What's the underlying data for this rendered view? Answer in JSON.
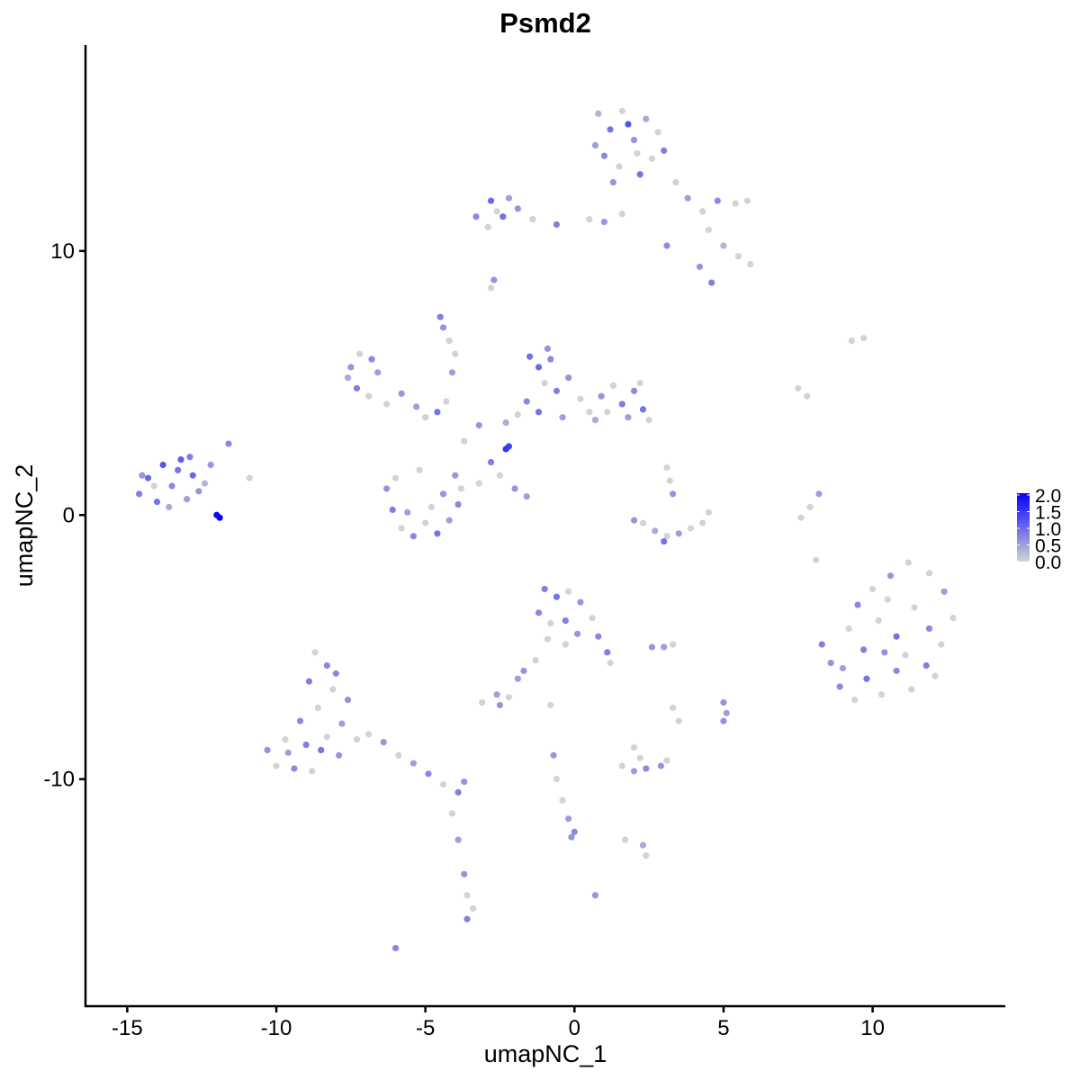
{
  "chart_data": {
    "type": "scatter",
    "title": "Psmd2",
    "xlabel": "umapNC_1",
    "ylabel": "umapNC_2",
    "xlim": [
      -16.4,
      14.45
    ],
    "ylim": [
      -18.6,
      17.8
    ],
    "xticks": [
      -15,
      -10,
      -5,
      0,
      5,
      10
    ],
    "yticks": [
      -10,
      0,
      10
    ],
    "xtick_labels": [
      "-15",
      "-10",
      "-5",
      "0",
      "5",
      "10"
    ],
    "ytick_labels": [
      "-10",
      "0",
      "10"
    ],
    "grid": false,
    "legend": {
      "placement": "right",
      "type": "colorbar",
      "range": [
        0,
        2
      ],
      "ticks": [
        "0.0",
        "0.5",
        "1.0",
        "1.5",
        "2.0"
      ],
      "low_color": "#D3D3D3",
      "high_color": "#0000FF"
    },
    "point_format": [
      "x",
      "y",
      "expression"
    ],
    "points": [
      [
        -14.6,
        0.8,
        0.8
      ],
      [
        -14.3,
        1.4,
        1.0
      ],
      [
        -14.0,
        0.5,
        0.9
      ],
      [
        -13.8,
        1.9,
        1.2
      ],
      [
        -13.5,
        1.1,
        0.7
      ],
      [
        -13.2,
        2.1,
        1.1
      ],
      [
        -13.0,
        0.6,
        0.5
      ],
      [
        -12.8,
        1.5,
        1.0
      ],
      [
        -12.6,
        0.9,
        0.6
      ],
      [
        -14.1,
        1.1,
        0
      ],
      [
        -13.6,
        0.3,
        0.4
      ],
      [
        -13.3,
        1.7,
        0.9
      ],
      [
        -12.9,
        2.2,
        0.8
      ],
      [
        -12.4,
        1.2,
        0.3
      ],
      [
        -14.5,
        1.5,
        0.6
      ],
      [
        -11.9,
        -0.1,
        2.0
      ],
      [
        -12.0,
        0.0,
        1.9
      ],
      [
        -11.6,
        2.7,
        0.7
      ],
      [
        -12.2,
        1.9,
        0.6
      ],
      [
        -10.9,
        1.4,
        0
      ],
      [
        0.8,
        15.2,
        0.3
      ],
      [
        1.2,
        14.6,
        0.9
      ],
      [
        1.6,
        15.3,
        0
      ],
      [
        2.0,
        14.2,
        0.6
      ],
      [
        2.4,
        15.0,
        0.4
      ],
      [
        2.8,
        14.5,
        0
      ],
      [
        3.0,
        13.8,
        0.8
      ],
      [
        1.0,
        13.6,
        0.7
      ],
      [
        1.5,
        13.2,
        0
      ],
      [
        2.2,
        12.9,
        0.9
      ],
      [
        2.6,
        13.5,
        0
      ],
      [
        0.7,
        14.0,
        0.5
      ],
      [
        1.8,
        14.8,
        1.2
      ],
      [
        2.1,
        13.7,
        0
      ],
      [
        1.3,
        12.6,
        0.6
      ],
      [
        3.4,
        12.6,
        0
      ],
      [
        3.8,
        12.0,
        0.5
      ],
      [
        4.3,
        11.5,
        0
      ],
      [
        4.8,
        11.9,
        0.7
      ],
      [
        5.4,
        11.8,
        0
      ],
      [
        5.8,
        11.9,
        0
      ],
      [
        4.5,
        10.8,
        0
      ],
      [
        5.0,
        10.2,
        0.3
      ],
      [
        5.5,
        9.8,
        0
      ],
      [
        5.9,
        9.5,
        0
      ],
      [
        4.2,
        9.4,
        0.6
      ],
      [
        4.6,
        8.8,
        0.8
      ],
      [
        3.1,
        10.2,
        0.7
      ],
      [
        1.6,
        11.4,
        0
      ],
      [
        1.0,
        11.1,
        0.6
      ],
      [
        0.5,
        11.2,
        0
      ],
      [
        -0.6,
        11.0,
        0.8
      ],
      [
        -1.4,
        11.2,
        0
      ],
      [
        -1.9,
        11.6,
        0.6
      ],
      [
        -2.4,
        11.3,
        0.9
      ],
      [
        -2.8,
        11.9,
        1.0
      ],
      [
        -2.2,
        12.0,
        0.5
      ],
      [
        -2.9,
        10.9,
        0
      ],
      [
        -3.3,
        11.3,
        0.7
      ],
      [
        -2.6,
        11.5,
        0
      ],
      [
        -2.7,
        8.9,
        0.6
      ],
      [
        -2.8,
        8.6,
        0
      ],
      [
        -7.5,
        5.6,
        0.6
      ],
      [
        -7.2,
        6.1,
        0
      ],
      [
        -6.8,
        5.9,
        0.7
      ],
      [
        -7.6,
        5.2,
        0.4
      ],
      [
        -7.3,
        4.8,
        0.8
      ],
      [
        -6.9,
        4.5,
        0
      ],
      [
        -6.6,
        5.4,
        0.5
      ],
      [
        -6.3,
        4.2,
        0
      ],
      [
        -5.8,
        4.6,
        0.6
      ],
      [
        -5.3,
        4.1,
        0.5
      ],
      [
        -5.0,
        3.7,
        0
      ],
      [
        -4.6,
        3.9,
        0.9
      ],
      [
        -4.3,
        4.3,
        0
      ],
      [
        -4.5,
        7.5,
        0.8
      ],
      [
        -4.4,
        7.1,
        0.6
      ],
      [
        -4.2,
        6.6,
        0
      ],
      [
        -4.0,
        6.1,
        0
      ],
      [
        -4.1,
        5.4,
        0.5
      ],
      [
        -6.3,
        1.0,
        0.6
      ],
      [
        -6.1,
        0.2,
        0.8
      ],
      [
        -5.8,
        -0.5,
        0
      ],
      [
        -5.4,
        -0.8,
        0.7
      ],
      [
        -5.0,
        -0.3,
        0
      ],
      [
        -4.6,
        -0.7,
        0.9
      ],
      [
        -4.2,
        -0.2,
        0.5
      ],
      [
        -3.9,
        0.4,
        0.7
      ],
      [
        -3.8,
        1.0,
        0
      ],
      [
        -4.0,
        1.5,
        0.6
      ],
      [
        -5.6,
        0.1,
        0.5
      ],
      [
        -4.8,
        0.3,
        0
      ],
      [
        -6.0,
        1.4,
        0
      ],
      [
        -5.2,
        1.7,
        0
      ],
      [
        -4.4,
        0.8,
        0.6
      ],
      [
        -3.7,
        2.8,
        0
      ],
      [
        -3.2,
        3.4,
        0.6
      ],
      [
        -2.8,
        2.0,
        0.8
      ],
      [
        -2.5,
        1.5,
        0
      ],
      [
        -2.0,
        1.0,
        0.6
      ],
      [
        -1.6,
        0.7,
        0.5
      ],
      [
        -3.2,
        1.2,
        0
      ],
      [
        -2.3,
        2.5,
        1.5
      ],
      [
        -2.2,
        2.6,
        1.4
      ],
      [
        -1.5,
        6.0,
        0.9
      ],
      [
        -1.2,
        5.6,
        1.0
      ],
      [
        -0.8,
        5.9,
        0.7
      ],
      [
        -1.0,
        5.0,
        0
      ],
      [
        -0.6,
        4.7,
        0.8
      ],
      [
        -0.2,
        5.2,
        0.6
      ],
      [
        0.2,
        4.4,
        0
      ],
      [
        -1.6,
        4.3,
        0.7
      ],
      [
        -1.9,
        3.8,
        0
      ],
      [
        -1.2,
        3.9,
        0.9
      ],
      [
        -0.4,
        3.7,
        0.5
      ],
      [
        0.5,
        3.9,
        0
      ],
      [
        -0.9,
        6.3,
        0.6
      ],
      [
        -2.3,
        3.5,
        0.4
      ],
      [
        0.9,
        4.5,
        0.6
      ],
      [
        1.3,
        4.9,
        0
      ],
      [
        1.6,
        4.2,
        0.8
      ],
      [
        2.0,
        4.7,
        0.7
      ],
      [
        2.3,
        4.0,
        0.9
      ],
      [
        2.5,
        3.6,
        0
      ],
      [
        1.8,
        3.7,
        0.5
      ],
      [
        1.1,
        3.9,
        0
      ],
      [
        2.2,
        5.0,
        0
      ],
      [
        0.7,
        3.6,
        0.4
      ],
      [
        2.3,
        -0.3,
        0
      ],
      [
        2.7,
        -0.6,
        0.4
      ],
      [
        3.1,
        -0.8,
        0
      ],
      [
        3.5,
        -0.7,
        0.5
      ],
      [
        3.9,
        -0.5,
        0
      ],
      [
        4.3,
        -0.3,
        0
      ],
      [
        4.5,
        0.1,
        0
      ],
      [
        3.0,
        -1.0,
        0.9
      ],
      [
        3.3,
        0.8,
        0.6
      ],
      [
        3.2,
        1.3,
        0
      ],
      [
        3.1,
        1.8,
        0
      ],
      [
        2.0,
        -0.2,
        0.6
      ],
      [
        7.6,
        -0.1,
        0
      ],
      [
        7.9,
        0.3,
        0
      ],
      [
        8.2,
        0.8,
        0.5
      ],
      [
        8.1,
        -1.7,
        0
      ],
      [
        9.3,
        6.6,
        0
      ],
      [
        9.7,
        6.7,
        0
      ],
      [
        7.5,
        4.8,
        0
      ],
      [
        7.8,
        4.5,
        0
      ],
      [
        8.3,
        -4.9,
        0.8
      ],
      [
        8.6,
        -5.6,
        0.6
      ],
      [
        8.9,
        -6.5,
        0.7
      ],
      [
        9.4,
        -7.0,
        0
      ],
      [
        9.8,
        -6.2,
        0.9
      ],
      [
        10.3,
        -6.8,
        0
      ],
      [
        10.8,
        -5.9,
        0.7
      ],
      [
        11.3,
        -6.6,
        0
      ],
      [
        11.8,
        -5.7,
        0.8
      ],
      [
        12.3,
        -4.9,
        0
      ],
      [
        12.7,
        -3.9,
        0
      ],
      [
        12.4,
        -2.9,
        0.5
      ],
      [
        11.9,
        -2.2,
        0
      ],
      [
        11.2,
        -1.8,
        0
      ],
      [
        10.6,
        -2.3,
        0.6
      ],
      [
        10.0,
        -2.8,
        0
      ],
      [
        9.5,
        -3.4,
        0.7
      ],
      [
        9.2,
        -4.3,
        0
      ],
      [
        9.7,
        -5.1,
        0.8
      ],
      [
        10.2,
        -4.0,
        0
      ],
      [
        10.8,
        -4.6,
        0.9
      ],
      [
        11.4,
        -3.5,
        0
      ],
      [
        11.9,
        -4.3,
        0.7
      ],
      [
        10.5,
        -3.2,
        0
      ],
      [
        11.1,
        -5.3,
        0
      ],
      [
        9.0,
        -5.8,
        0.5
      ],
      [
        12.1,
        -6.1,
        0
      ],
      [
        10.4,
        -5.2,
        0.6
      ],
      [
        -8.7,
        -5.2,
        0
      ],
      [
        -8.3,
        -5.7,
        0.7
      ],
      [
        -8.9,
        -6.3,
        0.8
      ],
      [
        -8.1,
        -6.6,
        0
      ],
      [
        -7.6,
        -7.0,
        0.6
      ],
      [
        -8.6,
        -7.3,
        0
      ],
      [
        -9.2,
        -7.8,
        0.7
      ],
      [
        -7.8,
        -7.9,
        0.5
      ],
      [
        -8.3,
        -8.4,
        0
      ],
      [
        -9.0,
        -8.7,
        0.8
      ],
      [
        -9.7,
        -8.5,
        0
      ],
      [
        -10.3,
        -8.9,
        0.6
      ],
      [
        -10.0,
        -9.5,
        0
      ],
      [
        -9.4,
        -9.6,
        0.7
      ],
      [
        -8.8,
        -9.7,
        0
      ],
      [
        -7.9,
        -9.1,
        0.6
      ],
      [
        -7.3,
        -8.5,
        0
      ],
      [
        -8.5,
        -8.9,
        0.9
      ],
      [
        -9.6,
        -9.0,
        0.5
      ],
      [
        -8.0,
        -6.0,
        0.7
      ],
      [
        -6.9,
        -8.3,
        0
      ],
      [
        -6.4,
        -8.6,
        0.6
      ],
      [
        -5.9,
        -9.1,
        0
      ],
      [
        -5.4,
        -9.4,
        0.5
      ],
      [
        -4.9,
        -9.8,
        0.7
      ],
      [
        -4.4,
        -10.2,
        0
      ],
      [
        -3.9,
        -10.5,
        0.8
      ],
      [
        -3.7,
        -10.1,
        0.6
      ],
      [
        -4.1,
        -11.3,
        0
      ],
      [
        -3.9,
        -12.3,
        0.5
      ],
      [
        -3.7,
        -13.6,
        0.6
      ],
      [
        -3.6,
        -14.4,
        0
      ],
      [
        -3.4,
        -14.9,
        0
      ],
      [
        -3.6,
        -15.3,
        0.8
      ],
      [
        -6.0,
        -16.4,
        0.7
      ],
      [
        -1.0,
        -2.8,
        0.8
      ],
      [
        -0.6,
        -3.1,
        0.9
      ],
      [
        -0.2,
        -2.9,
        0
      ],
      [
        0.2,
        -3.3,
        0.6
      ],
      [
        -1.2,
        -3.7,
        0.7
      ],
      [
        -0.8,
        -4.1,
        0
      ],
      [
        -0.3,
        -4.0,
        0.8
      ],
      [
        0.1,
        -4.5,
        0.6
      ],
      [
        -0.9,
        -4.7,
        0
      ],
      [
        0.6,
        -3.9,
        0
      ],
      [
        0.8,
        -4.6,
        0.7
      ],
      [
        1.1,
        -5.2,
        0.8
      ],
      [
        1.2,
        -5.6,
        0
      ],
      [
        -0.3,
        -4.9,
        0
      ],
      [
        -1.3,
        -5.5,
        0
      ],
      [
        -1.7,
        -5.9,
        0.6
      ],
      [
        -1.9,
        -6.2,
        0.5
      ],
      [
        -2.6,
        -6.8,
        0.5
      ],
      [
        -2.2,
        -6.9,
        0
      ],
      [
        -2.5,
        -7.2,
        0.6
      ],
      [
        -3.1,
        -7.1,
        0
      ],
      [
        2.6,
        -5.0,
        0.6
      ],
      [
        3.0,
        -5.0,
        0.5
      ],
      [
        3.3,
        -4.9,
        0
      ],
      [
        -0.8,
        -7.2,
        0
      ],
      [
        3.3,
        -7.3,
        0
      ],
      [
        3.5,
        -7.8,
        0
      ],
      [
        5.0,
        -7.1,
        0.6
      ],
      [
        5.1,
        -7.5,
        0.5
      ],
      [
        5.0,
        -7.8,
        0.6
      ],
      [
        -0.7,
        -9.1,
        0.6
      ],
      [
        -0.6,
        -10.0,
        0
      ],
      [
        -0.4,
        -10.8,
        0
      ],
      [
        -0.2,
        -11.5,
        0.5
      ],
      [
        0.0,
        -12.0,
        0.7
      ],
      [
        -0.1,
        -12.2,
        0.6
      ],
      [
        1.6,
        -9.5,
        0
      ],
      [
        2.0,
        -9.7,
        0.5
      ],
      [
        2.4,
        -9.6,
        0.7
      ],
      [
        2.9,
        -9.5,
        0.6
      ],
      [
        3.1,
        -9.3,
        0
      ],
      [
        2.2,
        -9.2,
        0
      ],
      [
        2.0,
        -8.8,
        0
      ],
      [
        1.7,
        -12.3,
        0
      ],
      [
        2.3,
        -12.5,
        0.4
      ],
      [
        2.4,
        -12.9,
        0
      ],
      [
        0.7,
        -14.4,
        0.6
      ]
    ]
  }
}
